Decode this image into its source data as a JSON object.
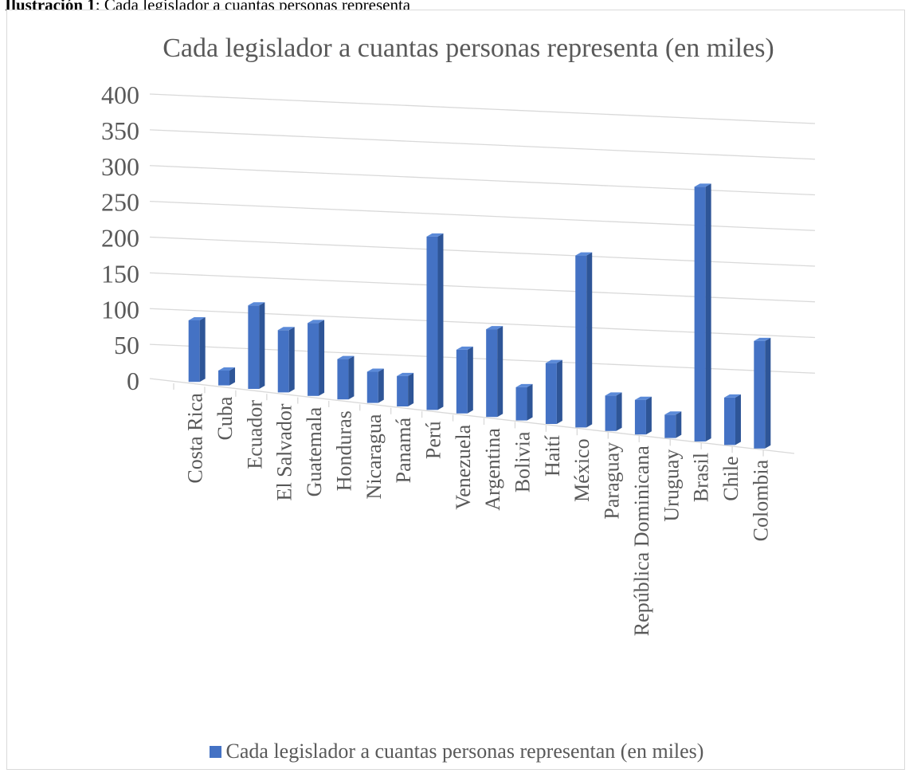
{
  "figure": {
    "label": "Ilustración 1",
    "caption": ": Cada legislador a cuantas personas representa"
  },
  "colors": {
    "bar_front": "#4472c4",
    "bar_side": "#2e5597",
    "bar_top": "#5b8ad8",
    "grid": "#d9d9d9",
    "text": "#595959"
  },
  "chart_data": {
    "type": "bar",
    "title": "Cada legislador a cuantas personas representa (en miles)",
    "categories": [
      "Costa Rica",
      "Cuba",
      "Ecuador",
      "El Salvador",
      "Guatemala",
      "Honduras",
      "Nicaragua",
      "Panamá",
      "Perú",
      "Venezuela",
      "Argentina",
      "Bolivia",
      "Haití",
      "México",
      "Paraguay",
      "República Dominicana",
      "Uruguay",
      "Brasil",
      "Chile",
      "Colombia"
    ],
    "series": [
      {
        "name": "Cada legislador a cuantas personas representan (en miles)",
        "values": [
          87,
          21,
          118,
          88,
          103,
          57,
          44,
          43,
          245,
          90,
          124,
          47,
          86,
          243,
          50,
          49,
          33,
          360,
          67,
          152
        ]
      }
    ],
    "ylim": [
      0,
      400
    ],
    "yticks": [
      0,
      50,
      100,
      150,
      200,
      250,
      300,
      350,
      400
    ],
    "grid": true,
    "legend": "bottom"
  }
}
